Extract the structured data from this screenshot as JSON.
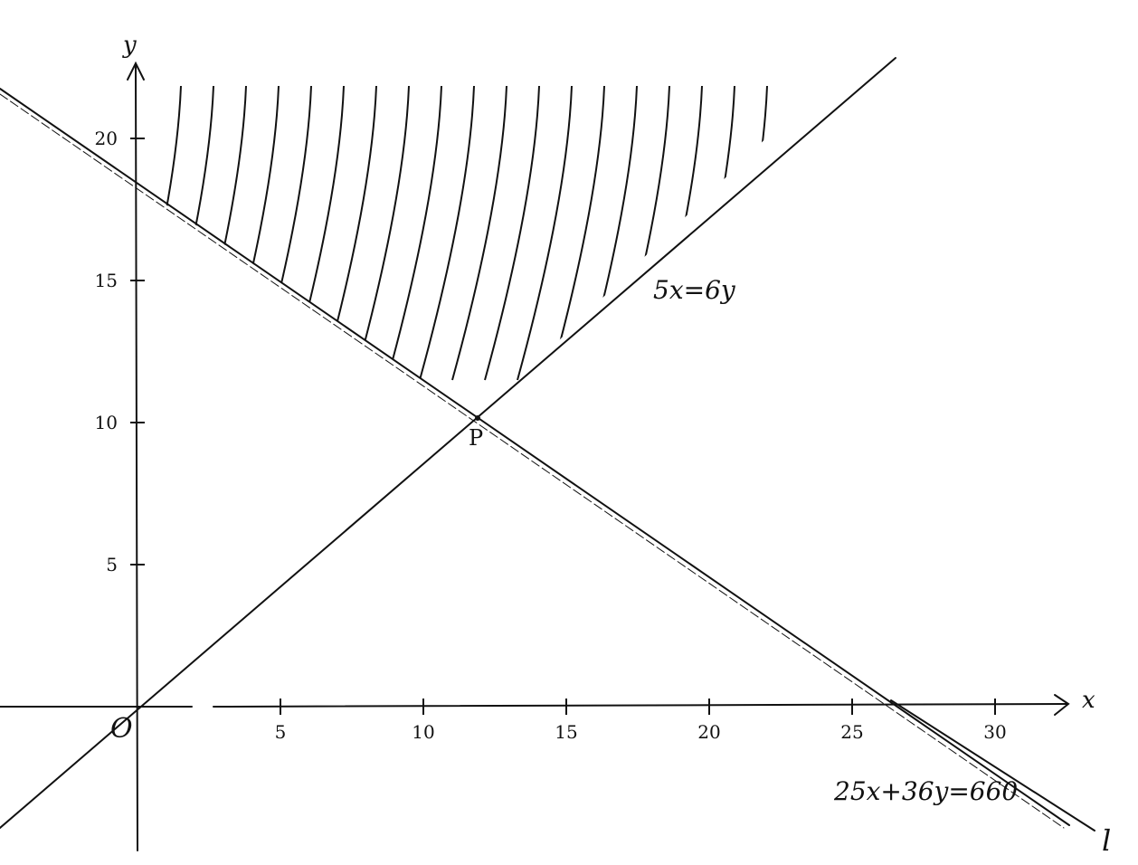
{
  "axes": {
    "x_name": "x",
    "y_name": "y",
    "origin_label": "O",
    "x_ticks": [
      {
        "value": 5,
        "label": "5"
      },
      {
        "value": 10,
        "label": "10"
      },
      {
        "value": 15,
        "label": "15"
      },
      {
        "value": 20,
        "label": "20"
      },
      {
        "value": 25,
        "label": "25"
      },
      {
        "value": 30,
        "label": "30"
      }
    ],
    "y_ticks": [
      {
        "value": 5,
        "label": "5"
      },
      {
        "value": 10,
        "label": "10"
      },
      {
        "value": 15,
        "label": "15"
      },
      {
        "value": 20,
        "label": "20"
      }
    ]
  },
  "lines": [
    {
      "id": "boundary-line",
      "label": "25x+36y=660"
    },
    {
      "id": "proportion-line",
      "label": "5x=6y"
    },
    {
      "id": "objective-line",
      "label": "l"
    }
  ],
  "point": {
    "label": "P",
    "x": 12,
    "y": 10
  },
  "ink_color": "#111111"
}
